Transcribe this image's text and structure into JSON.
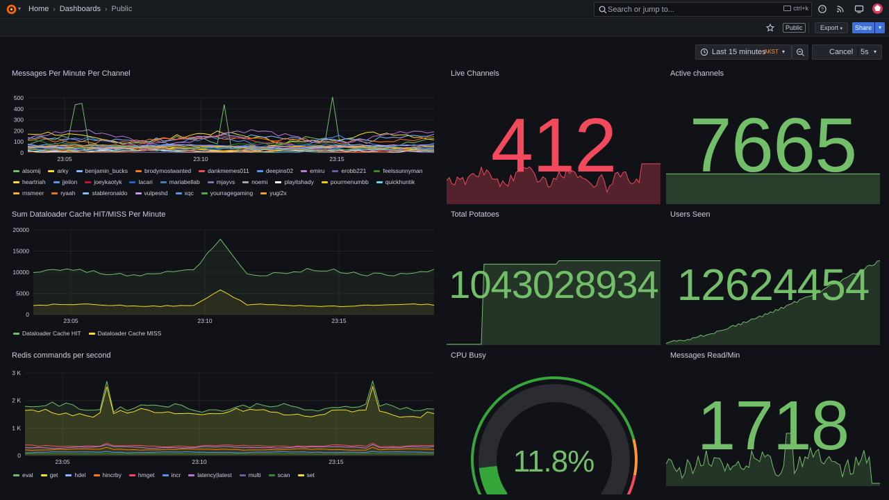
{
  "nav": {
    "breadcrumbs": [
      "Home",
      "Dashboards",
      "Public"
    ],
    "search_placeholder": "Search or jump to...",
    "search_shortcut": "ctrl+k"
  },
  "toolbar": {
    "public_label": "Public",
    "export_label": "Export",
    "share_label": "Share"
  },
  "time": {
    "range_label": "Last 15 minutes",
    "timezone": "AKST",
    "cancel_label": "Cancel",
    "refresh_label": "5s"
  },
  "colors": {
    "green": "#73bf69",
    "red": "#f2495c",
    "yellow": "#fade2a",
    "orange": "#ff9830",
    "blue": "#5794f2",
    "purple": "#b877d9"
  },
  "panels": {
    "messages": {
      "title": "Messages Per Minute Per Channel",
      "y_ticks": [
        "500",
        "400",
        "300",
        "200",
        "100",
        "0"
      ],
      "x_ticks": [
        "23:05",
        "23:10",
        "23:15"
      ],
      "legend": [
        {
          "name": "alsomij",
          "color": "#73bf69"
        },
        {
          "name": "arky",
          "color": "#fade2a"
        },
        {
          "name": "benjamin_bucks",
          "color": "#8ab8ff"
        },
        {
          "name": "brodymostwanted",
          "color": "#ff780a"
        },
        {
          "name": "dankmemes011",
          "color": "#f2495c"
        },
        {
          "name": "deepins02",
          "color": "#5794f2"
        },
        {
          "name": "emiru",
          "color": "#b877d9"
        },
        {
          "name": "erobb221",
          "color": "#705da0"
        },
        {
          "name": "feelssunnyman",
          "color": "#37872d"
        },
        {
          "name": "heartriah",
          "color": "#fade2a"
        },
        {
          "name": "jjeilon",
          "color": "#5794f2"
        },
        {
          "name": "joeykaotyk",
          "color": "#c4162a"
        },
        {
          "name": "lacari",
          "color": "#1f60c4"
        },
        {
          "name": "mariabellab",
          "color": "#447ebc"
        },
        {
          "name": "mjayvs",
          "color": "#806eb7"
        },
        {
          "name": "noemi",
          "color": "#9fa7b3"
        },
        {
          "name": "playitshady",
          "color": "#ffffff"
        },
        {
          "name": "pourmenumbb",
          "color": "#f2cc0c"
        },
        {
          "name": "quickhuntik",
          "color": "#6ed0e0"
        },
        {
          "name": "rnsmeer",
          "color": "#fbad37"
        },
        {
          "name": "ryaah",
          "color": "#e0752d"
        },
        {
          "name": "stableronaldo",
          "color": "#8ab8ff"
        },
        {
          "name": "vulpeshd",
          "color": "#ca95e5"
        },
        {
          "name": "xqc",
          "color": "#5794f2"
        },
        {
          "name": "yourragegaming",
          "color": "#56a64b"
        },
        {
          "name": "yugi2x",
          "color": "#ff9830"
        }
      ]
    },
    "live_channels": {
      "title": "Live Channels",
      "value": "412"
    },
    "active_channels": {
      "title": "Active channels",
      "value": "7665"
    },
    "dataloader": {
      "title": "Sum Dataloader Cache HIT/MISS Per Minute",
      "y_ticks": [
        "20000",
        "15000",
        "10000",
        "5000",
        "0"
      ],
      "x_ticks": [
        "23:05",
        "23:10",
        "23:15"
      ],
      "legend": [
        {
          "name": "Dataloader Cache HIT",
          "color": "#73bf69"
        },
        {
          "name": "Dataloader Cache MISS",
          "color": "#fade2a"
        }
      ]
    },
    "total_potatoes": {
      "title": "Total Potatoes",
      "value": "1043028934"
    },
    "users_seen": {
      "title": "Users Seen",
      "value": "12624454"
    },
    "redis": {
      "title": "Redis commands per second",
      "y_ticks": [
        "3 K",
        "2 K",
        "1 K",
        "0"
      ],
      "x_ticks": [
        "23:05",
        "23:10",
        "23:15"
      ],
      "legend": [
        {
          "name": "eval",
          "color": "#73bf69"
        },
        {
          "name": "get",
          "color": "#fade2a"
        },
        {
          "name": "hdel",
          "color": "#8ab8ff"
        },
        {
          "name": "hincrby",
          "color": "#ff780a"
        },
        {
          "name": "hmget",
          "color": "#f2495c"
        },
        {
          "name": "incr",
          "color": "#5794f2"
        },
        {
          "name": "latency|latest",
          "color": "#b877d9"
        },
        {
          "name": "multi",
          "color": "#705da0"
        },
        {
          "name": "scan",
          "color": "#37872d"
        },
        {
          "name": "set",
          "color": "#fade2a"
        }
      ]
    },
    "cpu_busy": {
      "title": "CPU Busy",
      "value": "11.8%",
      "percent": 11.8
    },
    "messages_read": {
      "title": "Messages Read/Min",
      "value": "1718"
    }
  }
}
